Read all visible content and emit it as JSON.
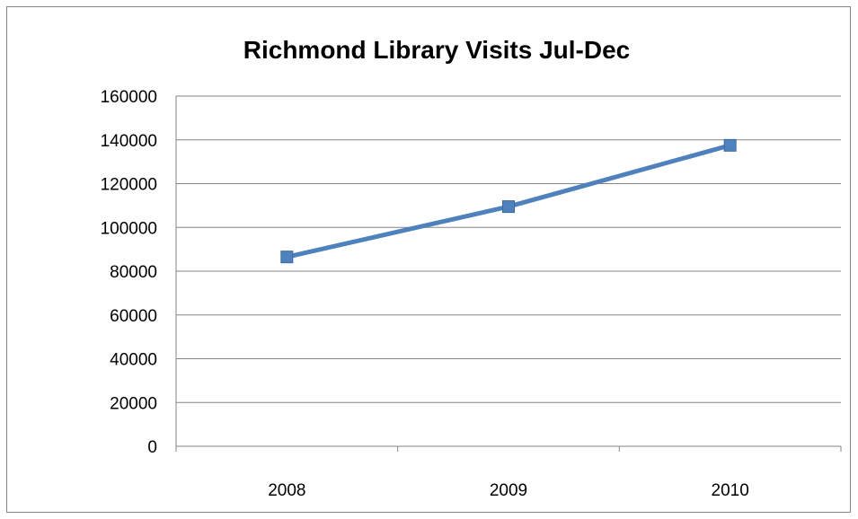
{
  "chart_data": {
    "type": "line",
    "title": "Richmond Library Visits Jul-Dec",
    "xlabel": "",
    "ylabel": "",
    "categories": [
      "2008",
      "2009",
      "2010"
    ],
    "series": [
      {
        "values": [
          86500,
          109500,
          137500
        ]
      }
    ],
    "ylim": [
      0,
      160000
    ],
    "yticks": [
      "0",
      "20000",
      "40000",
      "60000",
      "80000",
      "100000",
      "120000",
      "140000",
      "160000"
    ],
    "grid": "horizontal",
    "legend": "none",
    "marker": "square",
    "colors": {
      "line": "#4F81BD",
      "marker": "#4F81BD",
      "grid": "#868686",
      "frame": "#868686"
    }
  }
}
